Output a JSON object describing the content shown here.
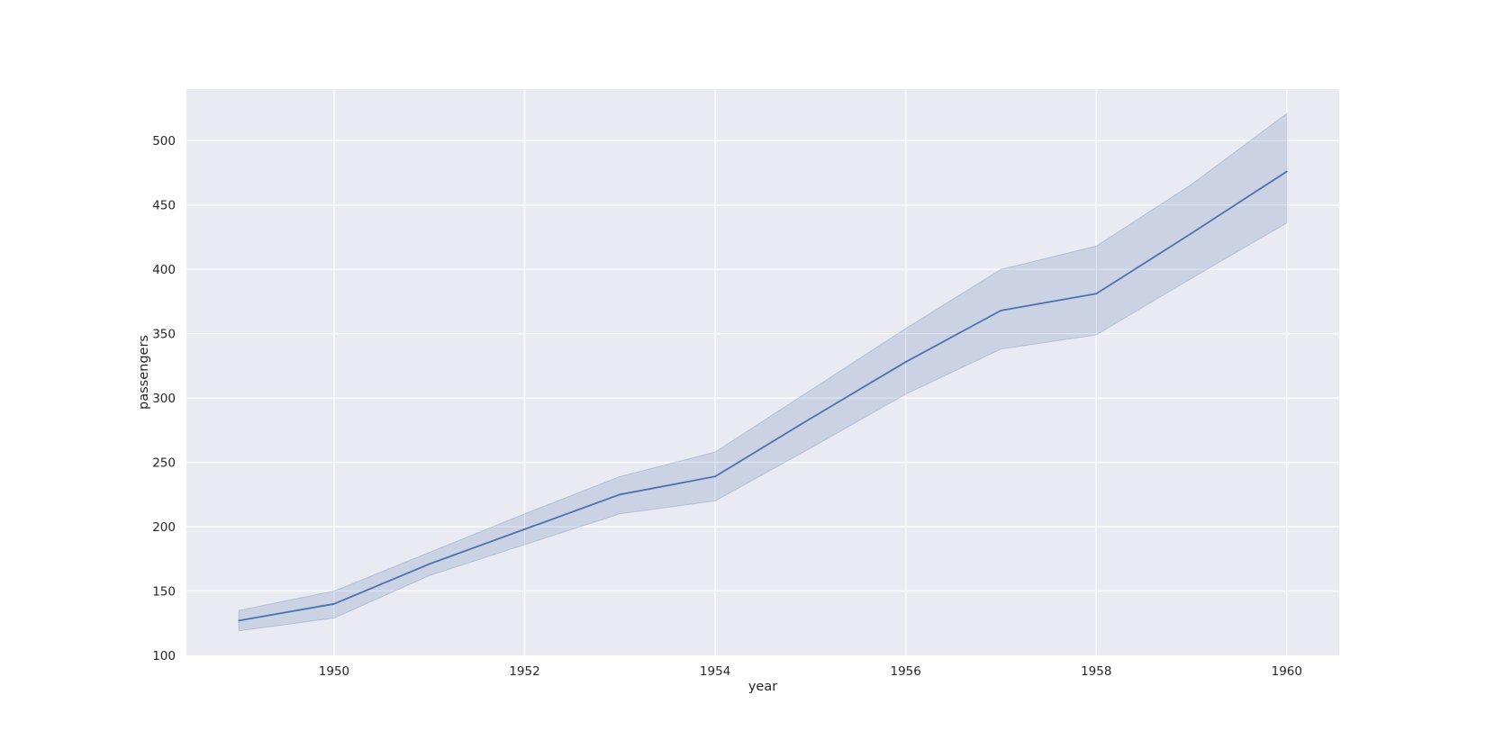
{
  "chart_data": {
    "type": "line",
    "title": "",
    "xlabel": "year",
    "ylabel": "passengers",
    "xlim": [
      1948.45,
      1960.55
    ],
    "ylim": [
      100,
      540
    ],
    "x_ticks": [
      1950,
      1952,
      1954,
      1956,
      1958,
      1960
    ],
    "y_ticks": [
      100,
      150,
      200,
      250,
      300,
      350,
      400,
      450,
      500
    ],
    "grid": true,
    "legend": "none",
    "series": [
      {
        "x": [
          1949,
          1950,
          1951,
          1952,
          1953,
          1954,
          1955,
          1956,
          1957,
          1958,
          1959,
          1960
        ],
        "values": [
          127,
          140,
          171,
          198,
          225,
          239,
          284,
          328,
          368,
          381,
          428,
          476
        ],
        "ci_lower": [
          119,
          129,
          162,
          186,
          210,
          220,
          261,
          303,
          338,
          349,
          393,
          436
        ],
        "ci_upper": [
          135,
          150,
          180,
          210,
          239,
          258,
          306,
          354,
          400,
          418,
          466,
          521
        ]
      }
    ]
  },
  "colors": {
    "background": "#eaeaf2",
    "grid": "#ffffff",
    "line": "#4c72b0",
    "band": "#4c72b0"
  }
}
